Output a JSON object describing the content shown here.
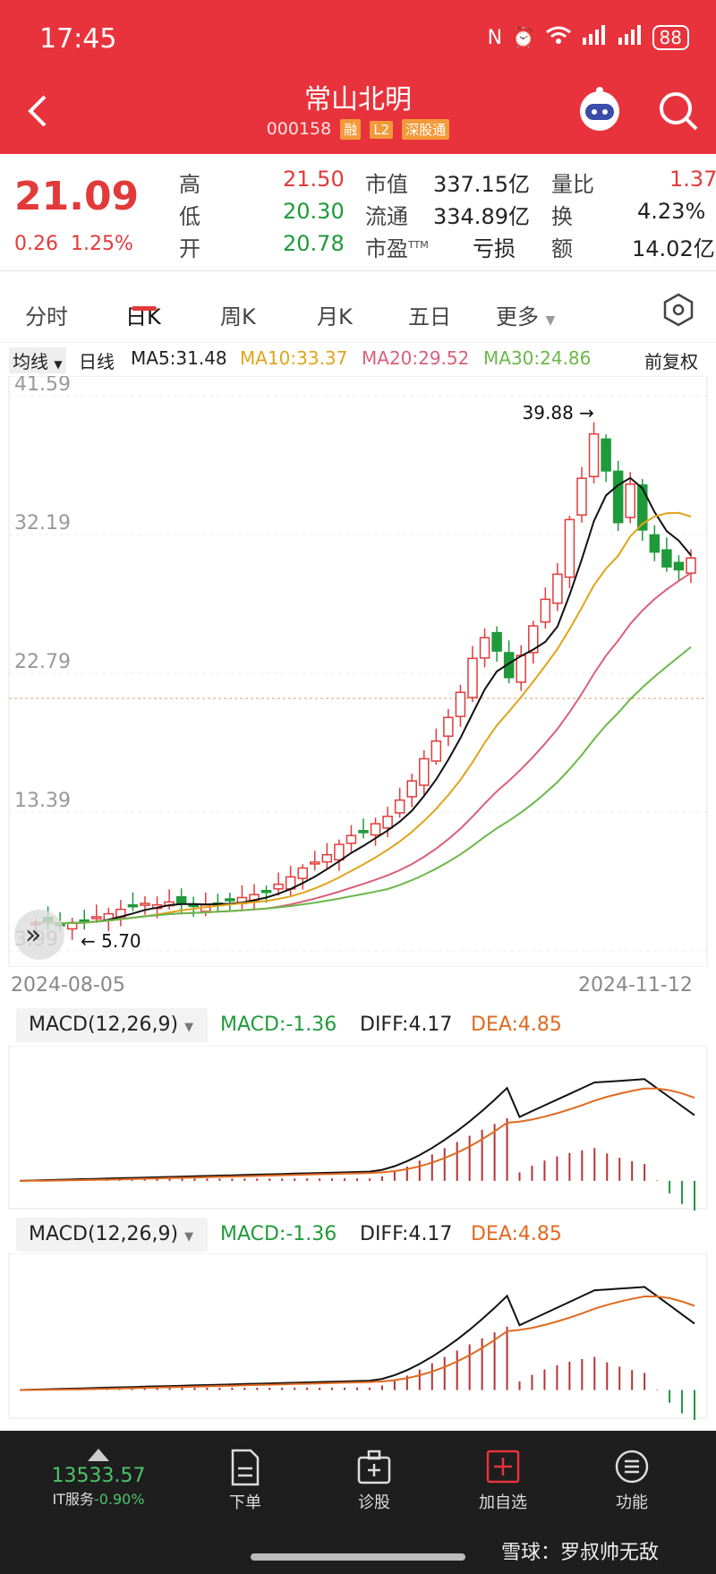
{
  "status": {
    "time": "17:45",
    "battery": "88"
  },
  "header": {
    "title": "常山北明",
    "code": "000158",
    "tags": [
      "融",
      "L2",
      "深股通"
    ]
  },
  "quote": {
    "price": "21.09",
    "change": "0.26",
    "change_pct": "1.25%",
    "high_label": "高",
    "high": "21.50",
    "low_label": "低",
    "low": "20.30",
    "open_label": "开",
    "open": "20.78",
    "mcap_label": "市值",
    "mcap": "337.15亿",
    "float_label": "流通",
    "float": "334.89亿",
    "pe_label": "市盈",
    "pe_sup": "TTM",
    "pe": "亏损",
    "vr_label": "量比",
    "vr": "1.37",
    "turn_label": "换",
    "turn": "4.23%",
    "amt_label": "额",
    "amt": "14.02亿"
  },
  "tabs": [
    "分时",
    "日K",
    "周K",
    "月K",
    "五日",
    "更多"
  ],
  "ma": {
    "selector": "均线",
    "type": "日线",
    "ma5": "MA5:31.48",
    "ma10": "MA10:33.37",
    "ma20": "MA20:29.52",
    "ma30": "MA30:24.86",
    "adjust": "前复权"
  },
  "chart_data": {
    "type": "candlestick",
    "y_ticks": [
      "41.59",
      "32.19",
      "22.79",
      "13.39",
      "3.99"
    ],
    "ylim": [
      3.99,
      41.59
    ],
    "x_labels": [
      "2024-08-05",
      "2024-11-12"
    ],
    "annotations": [
      "39.88",
      "5.70"
    ],
    "candles_close_approx": [
      5.9,
      5.9,
      5.8,
      5.9,
      6.0,
      6.3,
      6.5,
      6.8,
      7.0,
      7.2,
      7.1,
      7.3,
      7.2,
      7.0,
      7.1,
      7.2,
      7.4,
      7.6,
      7.8,
      8.0,
      8.5,
      9.0,
      9.6,
      10.0,
      10.5,
      11.2,
      11.8,
      12.0,
      12.6,
      13.1,
      14.2,
      15.5,
      17.0,
      18.2,
      19.8,
      21.5,
      23.8,
      25.2,
      24.3,
      22.5,
      24.0,
      26.0,
      27.8,
      29.5,
      33.2,
      36.0,
      39.0,
      36.5,
      33.0,
      35.6,
      32.5,
      31.0,
      30.0,
      29.8,
      30.6
    ],
    "colors": {
      "up": "#e23a3a",
      "down": "#1f9a3a",
      "ma5": "#111111",
      "ma10": "#e0a41a",
      "ma20": "#d9607a",
      "ma30": "#6bb84a"
    }
  },
  "macd": {
    "label": "MACD(12,26,9)",
    "macd": "MACD:-1.36",
    "diff": "DIFF:4.17",
    "dea": "DEA:4.85"
  },
  "bottom": {
    "index_value": "13533.57",
    "index_name": "IT服务",
    "index_change": "-0.90%",
    "nav": [
      "下单",
      "诊股",
      "加自选",
      "功能"
    ],
    "watermark": "雪球：罗叔帅无敌"
  }
}
